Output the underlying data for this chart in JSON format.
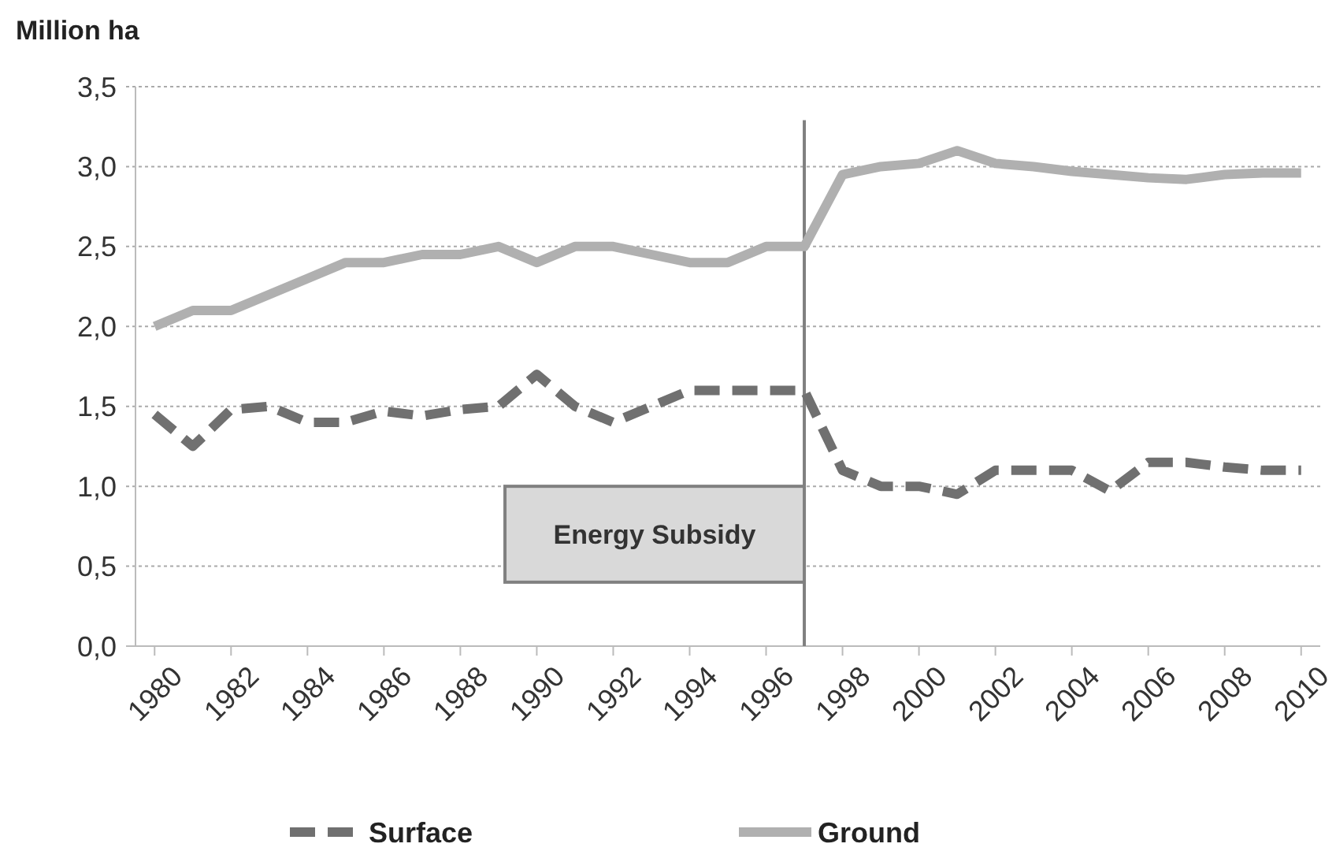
{
  "chart_data": {
    "type": "line",
    "ylabel": "Million  ha",
    "x": [
      1980,
      1981,
      1982,
      1983,
      1984,
      1985,
      1986,
      1987,
      1988,
      1989,
      1990,
      1991,
      1992,
      1993,
      1994,
      1995,
      1996,
      1997,
      1998,
      1999,
      2000,
      2001,
      2002,
      2003,
      2004,
      2005,
      2006,
      2007,
      2008,
      2009,
      2010
    ],
    "series": [
      {
        "name": "Surface",
        "color": "#707070",
        "line_style": "dashed",
        "values": [
          1.45,
          1.25,
          1.48,
          1.5,
          1.4,
          1.4,
          1.47,
          1.44,
          1.48,
          1.5,
          1.7,
          1.5,
          1.4,
          1.5,
          1.6,
          1.6,
          1.6,
          1.6,
          1.1,
          1.0,
          1.0,
          0.95,
          1.1,
          1.1,
          1.1,
          0.97,
          1.15,
          1.15,
          1.12,
          1.1,
          1.1
        ]
      },
      {
        "name": "Ground",
        "color": "#b0b0b0",
        "line_style": "solid",
        "values": [
          2.0,
          2.1,
          2.1,
          2.2,
          2.3,
          2.4,
          2.4,
          2.45,
          2.45,
          2.5,
          2.4,
          2.5,
          2.5,
          2.45,
          2.4,
          2.4,
          2.5,
          2.5,
          2.95,
          3.0,
          3.02,
          3.1,
          3.02,
          3.0,
          2.97,
          2.95,
          2.93,
          2.92,
          2.95,
          2.96,
          2.96
        ]
      }
    ],
    "xlim": [
      1979.5,
      2010.5
    ],
    "xticks": [
      1980,
      1982,
      1984,
      1986,
      1988,
      1990,
      1992,
      1994,
      1996,
      1998,
      2000,
      2002,
      2004,
      2006,
      2008,
      2010
    ],
    "ylim": [
      0,
      3.5
    ],
    "yticks": [
      {
        "value": 0,
        "label": "0,0"
      },
      {
        "value": 0.5,
        "label": "0,5"
      },
      {
        "value": 1,
        "label": "1,0"
      },
      {
        "value": 1.5,
        "label": "1,5"
      },
      {
        "value": 2,
        "label": "2,0"
      },
      {
        "value": 2.5,
        "label": "2,5"
      },
      {
        "value": 3,
        "label": "3,0"
      },
      {
        "value": 3.5,
        "label": "3,5"
      }
    ],
    "ref_lines": [
      {
        "axis": "x",
        "value": 1997,
        "label": "Energy Subsidy",
        "color": "#808080"
      }
    ],
    "grid": "y",
    "legend": "bottom",
    "marker": "none"
  }
}
